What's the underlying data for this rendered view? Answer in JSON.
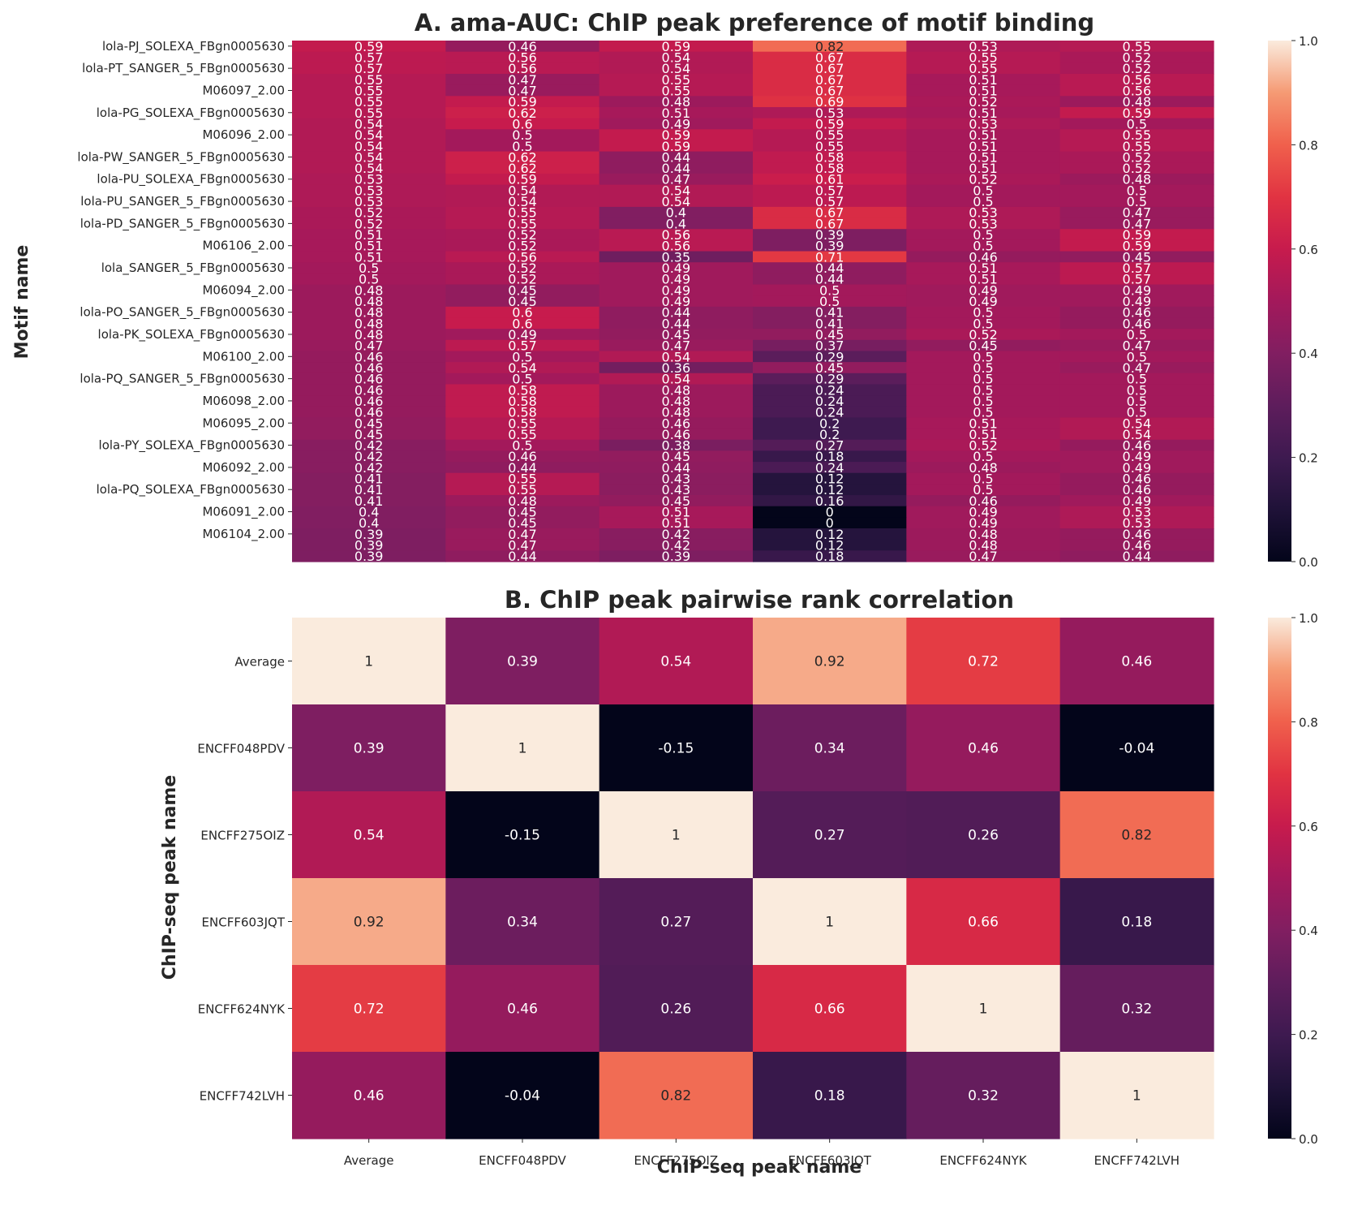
{
  "chart_data": [
    {
      "type": "heatmap",
      "title": "A. ama-AUC: ChIP peak preference of motif binding",
      "xlabel": "",
      "ylabel": "Motif name",
      "colorbar": {
        "min": 0.0,
        "max": 1.0,
        "ticks": [
          "0.0",
          "0.2",
          "0.4",
          "0.6",
          "0.8",
          "1.0"
        ]
      },
      "ytick_labels": [
        "lola-PJ_SOLEXA_FBgn0005630",
        "lola-PT_SANGER_5_FBgn0005630",
        "M06097_2.00",
        "lola-PG_SOLEXA_FBgn0005630",
        "M06096_2.00",
        "lola-PW_SANGER_5_FBgn0005630",
        "lola-PU_SOLEXA_FBgn0005630",
        "lola-PU_SANGER_5_FBgn0005630",
        "lola-PD_SANGER_5_FBgn0005630",
        "M06106_2.00",
        "lola_SANGER_5_FBgn0005630",
        "M06094_2.00",
        "lola-PO_SANGER_5_FBgn0005630",
        "lola-PK_SOLEXA_FBgn0005630",
        "M06100_2.00",
        "lola-PQ_SANGER_5_FBgn0005630",
        "M06098_2.00",
        "M06095_2.00",
        "lola-PY_SOLEXA_FBgn0005630",
        "M06092_2.00",
        "lola-PQ_SOLEXA_FBgn0005630",
        "M06091_2.00",
        "M06104_2.00"
      ],
      "values": [
        [
          "0.59",
          "0.46",
          "0.59",
          "0.82",
          "0.53",
          "0.55"
        ],
        [
          "0.57",
          "0.56",
          "0.54",
          "0.67",
          "0.55",
          "0.52"
        ],
        [
          "0.57",
          "0.56",
          "0.54",
          "0.67",
          "0.55",
          "0.52"
        ],
        [
          "0.55",
          "0.47",
          "0.55",
          "0.67",
          "0.51",
          "0.56"
        ],
        [
          "0.55",
          "0.47",
          "0.55",
          "0.67",
          "0.51",
          "0.56"
        ],
        [
          "0.55",
          "0.59",
          "0.48",
          "0.69",
          "0.52",
          "0.48"
        ],
        [
          "0.55",
          "0.62",
          "0.51",
          "0.53",
          "0.51",
          "0.59"
        ],
        [
          "0.54",
          "0.6",
          "0.49",
          "0.59",
          "0.53",
          "0.5"
        ],
        [
          "0.54",
          "0.5",
          "0.59",
          "0.55",
          "0.51",
          "0.55"
        ],
        [
          "0.54",
          "0.5",
          "0.59",
          "0.55",
          "0.51",
          "0.55"
        ],
        [
          "0.54",
          "0.62",
          "0.44",
          "0.58",
          "0.51",
          "0.52"
        ],
        [
          "0.54",
          "0.62",
          "0.44",
          "0.58",
          "0.51",
          "0.52"
        ],
        [
          "0.53",
          "0.59",
          "0.47",
          "0.61",
          "0.52",
          "0.48"
        ],
        [
          "0.53",
          "0.54",
          "0.54",
          "0.57",
          "0.5",
          "0.5"
        ],
        [
          "0.53",
          "0.54",
          "0.54",
          "0.57",
          "0.5",
          "0.5"
        ],
        [
          "0.52",
          "0.55",
          "0.4",
          "0.67",
          "0.53",
          "0.47"
        ],
        [
          "0.52",
          "0.55",
          "0.4",
          "0.67",
          "0.53",
          "0.47"
        ],
        [
          "0.51",
          "0.52",
          "0.56",
          "0.39",
          "0.5",
          "0.59"
        ],
        [
          "0.51",
          "0.52",
          "0.56",
          "0.39",
          "0.5",
          "0.59"
        ],
        [
          "0.51",
          "0.56",
          "0.35",
          "0.71",
          "0.46",
          "0.45"
        ],
        [
          "0.5",
          "0.52",
          "0.49",
          "0.44",
          "0.51",
          "0.57"
        ],
        [
          "0.5",
          "0.52",
          "0.49",
          "0.44",
          "0.51",
          "0.57"
        ],
        [
          "0.48",
          "0.45",
          "0.49",
          "0.5",
          "0.49",
          "0.49"
        ],
        [
          "0.48",
          "0.45",
          "0.49",
          "0.5",
          "0.49",
          "0.49"
        ],
        [
          "0.48",
          "0.6",
          "0.44",
          "0.41",
          "0.5",
          "0.46"
        ],
        [
          "0.48",
          "0.6",
          "0.44",
          "0.41",
          "0.5",
          "0.46"
        ],
        [
          "0.48",
          "0.49",
          "0.45",
          "0.45",
          "0.52",
          "0.5"
        ],
        [
          "0.47",
          "0.57",
          "0.47",
          "0.37",
          "0.45",
          "0.47"
        ],
        [
          "0.46",
          "0.5",
          "0.54",
          "0.29",
          "0.5",
          "0.5"
        ],
        [
          "0.46",
          "0.54",
          "0.36",
          "0.45",
          "0.5",
          "0.47"
        ],
        [
          "0.46",
          "0.5",
          "0.54",
          "0.29",
          "0.5",
          "0.5"
        ],
        [
          "0.46",
          "0.58",
          "0.48",
          "0.24",
          "0.5",
          "0.5"
        ],
        [
          "0.46",
          "0.58",
          "0.48",
          "0.24",
          "0.5",
          "0.5"
        ],
        [
          "0.46",
          "0.58",
          "0.48",
          "0.24",
          "0.5",
          "0.5"
        ],
        [
          "0.45",
          "0.55",
          "0.46",
          "0.2",
          "0.51",
          "0.54"
        ],
        [
          "0.45",
          "0.55",
          "0.46",
          "0.2",
          "0.51",
          "0.54"
        ],
        [
          "0.42",
          "0.5",
          "0.38",
          "0.27",
          "0.52",
          "0.46"
        ],
        [
          "0.42",
          "0.46",
          "0.45",
          "0.18",
          "0.5",
          "0.49"
        ],
        [
          "0.42",
          "0.44",
          "0.44",
          "0.24",
          "0.48",
          "0.49"
        ],
        [
          "0.41",
          "0.55",
          "0.43",
          "0.12",
          "0.5",
          "0.46"
        ],
        [
          "0.41",
          "0.55",
          "0.43",
          "0.12",
          "0.5",
          "0.46"
        ],
        [
          "0.41",
          "0.48",
          "0.45",
          "0.16",
          "0.46",
          "0.49"
        ],
        [
          "0.4",
          "0.45",
          "0.51",
          "0",
          "0.49",
          "0.53"
        ],
        [
          "0.4",
          "0.45",
          "0.51",
          "0",
          "0.49",
          "0.53"
        ],
        [
          "0.39",
          "0.47",
          "0.42",
          "0.12",
          "0.48",
          "0.46"
        ],
        [
          "0.39",
          "0.47",
          "0.42",
          "0.12",
          "0.48",
          "0.46"
        ],
        [
          "0.39",
          "0.44",
          "0.39",
          "0.18",
          "0.47",
          "0.44"
        ]
      ]
    },
    {
      "type": "heatmap",
      "title": "B. ChIP peak pairwise rank correlation",
      "xlabel": "ChIP-seq peak name",
      "ylabel": "ChIP-seq peak name",
      "colorbar": {
        "min": 0.0,
        "max": 1.0,
        "ticks": [
          "0.0",
          "0.2",
          "0.4",
          "0.6",
          "0.8",
          "1.0"
        ]
      },
      "xtick_labels": [
        "Average",
        "ENCFF048PDV",
        "ENCFF275OIZ",
        "ENCFF603JQT",
        "ENCFF624NYK",
        "ENCFF742LVH"
      ],
      "ytick_labels": [
        "Average",
        "ENCFF048PDV",
        "ENCFF275OIZ",
        "ENCFF603JQT",
        "ENCFF624NYK",
        "ENCFF742LVH"
      ],
      "values": [
        [
          "1",
          "0.39",
          "0.54",
          "0.92",
          "0.72",
          "0.46"
        ],
        [
          "0.39",
          "1",
          "-0.15",
          "0.34",
          "0.46",
          "-0.04"
        ],
        [
          "0.54",
          "-0.15",
          "1",
          "0.27",
          "0.26",
          "0.82"
        ],
        [
          "0.92",
          "0.34",
          "0.27",
          "1",
          "0.66",
          "0.18"
        ],
        [
          "0.72",
          "0.46",
          "0.26",
          "0.66",
          "1",
          "0.32"
        ],
        [
          "0.46",
          "-0.04",
          "0.82",
          "0.18",
          "0.32",
          "1"
        ]
      ]
    }
  ]
}
